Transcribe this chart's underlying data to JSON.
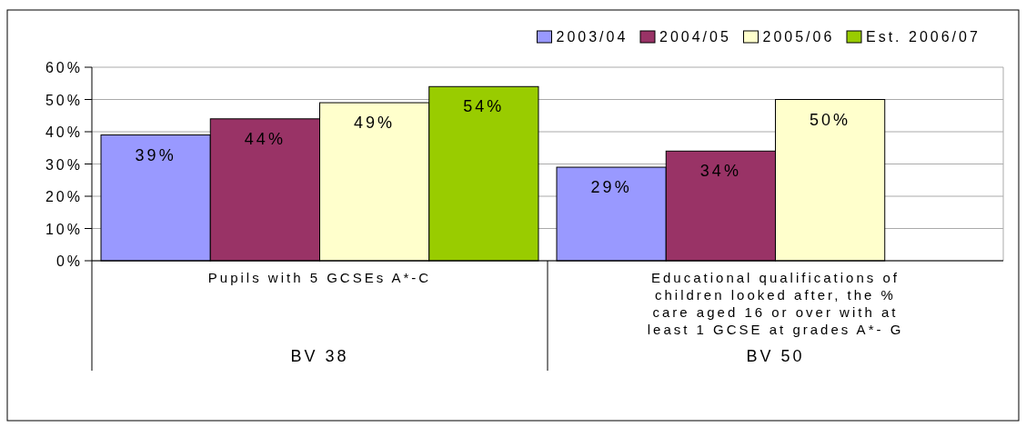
{
  "chart_data": {
    "type": "bar",
    "categories": [
      "Pupils with 5 GCSEs A*-C",
      "Educational qualifications of children looked after, the % care aged 16 or over with at least 1 GCSE at grades A*- G"
    ],
    "series": [
      {
        "name": "2003/04",
        "color": "#9999ff",
        "values": [
          39,
          29
        ],
        "value_labels": [
          "39%",
          "29%"
        ]
      },
      {
        "name": "2004/05",
        "color": "#993366",
        "values": [
          44,
          34
        ],
        "value_labels": [
          "44%",
          "34%"
        ]
      },
      {
        "name": "2005/06",
        "color": "#ffffcc",
        "values": [
          49,
          50
        ],
        "value_labels": [
          "49%",
          "50%"
        ]
      },
      {
        "name": "Est. 2006/07",
        "color": "#99cc00",
        "values": [
          54,
          null
        ],
        "value_labels": [
          "54%",
          null
        ]
      }
    ],
    "ylim": [
      0,
      60
    ],
    "yticks": [
      {
        "value": 0,
        "label": "0%"
      },
      {
        "value": 10,
        "label": "10%"
      },
      {
        "value": 20,
        "label": "20%"
      },
      {
        "value": 30,
        "label": "30%"
      },
      {
        "value": 40,
        "label": "40%"
      },
      {
        "value": 50,
        "label": "50%"
      },
      {
        "value": 60,
        "label": "60%"
      }
    ],
    "grid": "y",
    "legend": "top right",
    "annotations": [
      "BV 38",
      "BV 50"
    ]
  }
}
